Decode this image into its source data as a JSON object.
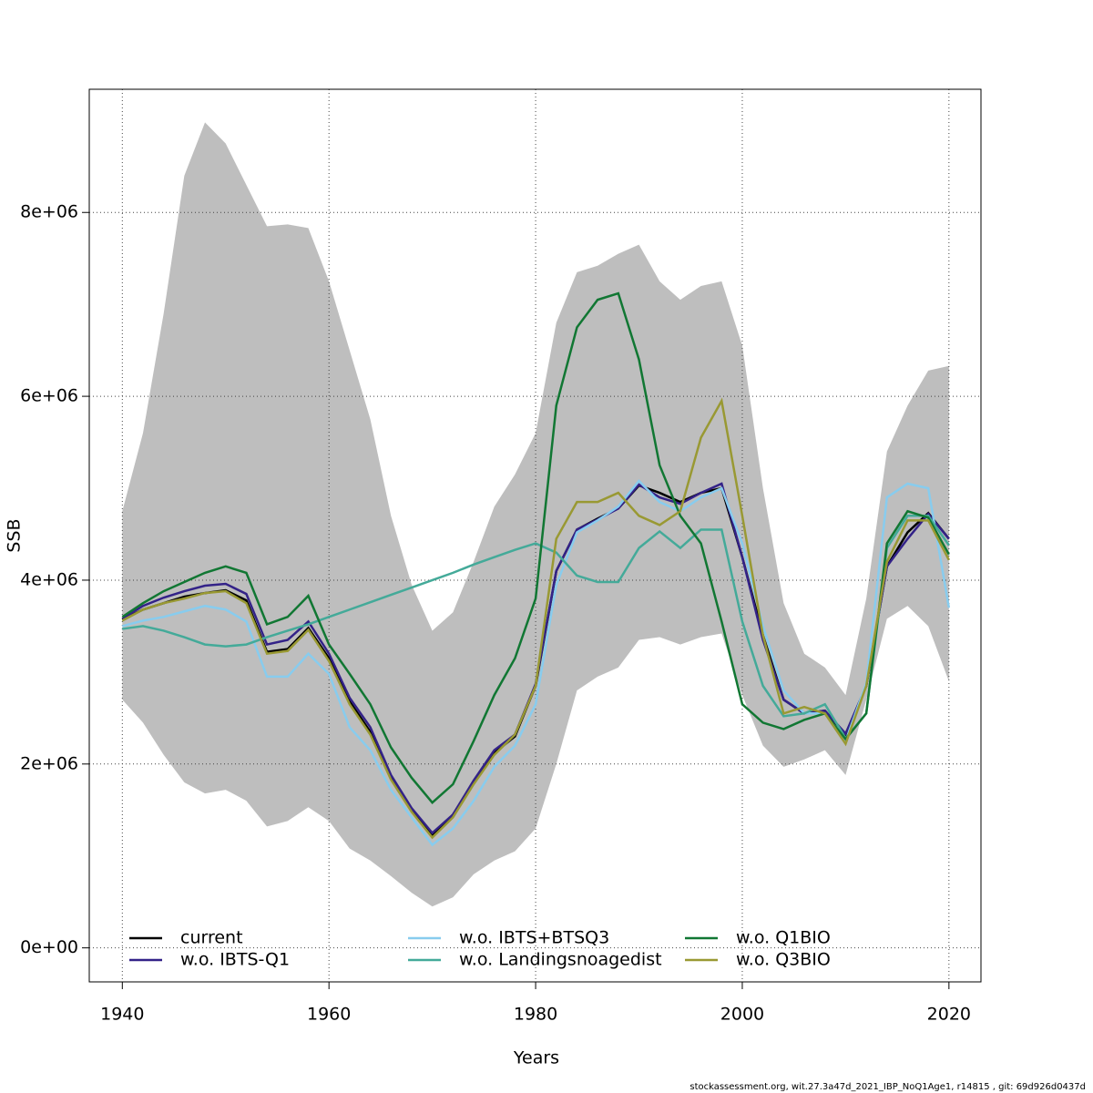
{
  "chart_data": {
    "type": "line",
    "xlabel": "Years",
    "ylabel": "SSB",
    "footer": "stockassessment.org, wit.27.3a47d_2021_IBP_NoQ1Age1, r14815 , git: 69d926d0437d",
    "x": [
      1940,
      1942,
      1944,
      1946,
      1948,
      1950,
      1952,
      1954,
      1956,
      1958,
      1960,
      1962,
      1964,
      1966,
      1968,
      1970,
      1972,
      1974,
      1976,
      1978,
      1980,
      1982,
      1984,
      1986,
      1988,
      1990,
      1992,
      1994,
      1996,
      1998,
      2000,
      2002,
      2004,
      2006,
      2008,
      2010,
      2012,
      2014,
      2016,
      2018,
      2020
    ],
    "xlim": [
      1936.8,
      2023.1
    ],
    "xticks": [
      1940,
      1960,
      1980,
      2000,
      2020
    ],
    "ylim": [
      -370000,
      9340000
    ],
    "yticks": [
      {
        "value": 0,
        "label": "0e+00"
      },
      {
        "value": 2000000,
        "label": "2e+06"
      },
      {
        "value": 4000000,
        "label": "4e+06"
      },
      {
        "value": 6000000,
        "label": "6e+06"
      },
      {
        "value": 8000000,
        "label": "8e+06"
      }
    ],
    "grid": true,
    "legend": "bottom",
    "band": {
      "color": "#bebebe",
      "upper": [
        4750000.0,
        5600000.0,
        6900000.0,
        8400000.0,
        8980000.0,
        8750000.0,
        8300000.0,
        7850000.0,
        7870000.0,
        7830000.0,
        7250000.0,
        6500000.0,
        5750000.0,
        4700000.0,
        3950000.0,
        3450000.0,
        3650000.0,
        4200000.0,
        4800000.0,
        5150000.0,
        5600000.0,
        6800000.0,
        7350000.0,
        7420000.0,
        7550000.0,
        7650000.0,
        7250000.0,
        7050000.0,
        7200000.0,
        7250000.0,
        6550000.0,
        5000000.0,
        3750000.0,
        3200000.0,
        3050000.0,
        2750000.0,
        3800000.0,
        5400000.0,
        5900000.0,
        6280000.0,
        6330000.0
      ],
      "lower": [
        2700000.0,
        2450000.0,
        2100000.0,
        1800000.0,
        1680000.0,
        1720000.0,
        1600000.0,
        1320000.0,
        1380000.0,
        1530000.0,
        1380000.0,
        1080000.0,
        950000.0,
        780000.0,
        600000.0,
        450000.0,
        550000.0,
        800000.0,
        950000.0,
        1050000.0,
        1300000.0,
        2000000.0,
        2800000.0,
        2950000.0,
        3050000.0,
        3350000.0,
        3380000.0,
        3300000.0,
        3380000.0,
        3420000.0,
        2750000.0,
        2200000.0,
        1970000.0,
        2050000.0,
        2150000.0,
        1880000.0,
        2700000.0,
        3580000.0,
        3720000.0,
        3500000.0,
        2900000.0
      ]
    },
    "series": [
      {
        "name": "current",
        "color": "#000000",
        "values": [
          3570000.0,
          3680000.0,
          3750000.0,
          3820000.0,
          3860000.0,
          3890000.0,
          3780000.0,
          3220000.0,
          3250000.0,
          3480000.0,
          3150000.0,
          2680000.0,
          2350000.0,
          1850000.0,
          1500000.0,
          1220000.0,
          1450000.0,
          1800000.0,
          2120000.0,
          2300000.0,
          2850000.0,
          4100000.0,
          4550000.0,
          4670000.0,
          4780000.0,
          5030000.0,
          4950000.0,
          4850000.0,
          4950000.0,
          5000000.0,
          4250000.0,
          3400000.0,
          2700000.0,
          2550000.0,
          2580000.0,
          2320000.0,
          2850000.0,
          4150000.0,
          4520000.0,
          4730000.0,
          4450000.0
        ]
      },
      {
        "name": "w.o. IBTS-Q1",
        "color": "#332288",
        "values": [
          3580000.0,
          3720000.0,
          3810000.0,
          3880000.0,
          3940000.0,
          3960000.0,
          3850000.0,
          3300000.0,
          3350000.0,
          3550000.0,
          3200000.0,
          2720000.0,
          2400000.0,
          1880000.0,
          1520000.0,
          1250000.0,
          1450000.0,
          1820000.0,
          2150000.0,
          2320000.0,
          2870000.0,
          4100000.0,
          4550000.0,
          4660000.0,
          4780000.0,
          5040000.0,
          4900000.0,
          4830000.0,
          4950000.0,
          5050000.0,
          4250000.0,
          3350000.0,
          2700000.0,
          2550000.0,
          2580000.0,
          2330000.0,
          2850000.0,
          4150000.0,
          4450000.0,
          4720000.0,
          4450000.0
        ]
      },
      {
        "name": "w.o. IBTS+BTSQ3",
        "color": "#88ccee",
        "values": [
          3500000.0,
          3560000.0,
          3600000.0,
          3660000.0,
          3720000.0,
          3680000.0,
          3550000.0,
          2950000.0,
          2950000.0,
          3200000.0,
          2980000.0,
          2400000.0,
          2150000.0,
          1720000.0,
          1420000.0,
          1120000.0,
          1300000.0,
          1600000.0,
          1970000.0,
          2200000.0,
          2650000.0,
          3950000.0,
          4520000.0,
          4650000.0,
          4800000.0,
          5080000.0,
          4850000.0,
          4750000.0,
          4900000.0,
          5000000.0,
          4400000.0,
          3500000.0,
          2800000.0,
          2550000.0,
          2550000.0,
          2250000.0,
          2880000.0,
          4900000.0,
          5050000.0,
          5000000.0,
          3700000.0
        ]
      },
      {
        "name": "w.o. Landingsnoagedist",
        "color": "#44aa99",
        "values": [
          3470000.0,
          3500000.0,
          3450000.0,
          3380000.0,
          3300000.0,
          3280000.0,
          3300000.0,
          3380000.0,
          3450000.0,
          3520000.0,
          3600000.0,
          3680000.0,
          3760000.0,
          3840000.0,
          3920000.0,
          4000000.0,
          4080000.0,
          4170000.0,
          4250000.0,
          4330000.0,
          4400000.0,
          4300000.0,
          4050000.0,
          3980000.0,
          3980000.0,
          4350000.0,
          4530000.0,
          4350000.0,
          4550000.0,
          4550000.0,
          3550000.0,
          2850000.0,
          2520000.0,
          2550000.0,
          2650000.0,
          2280000.0,
          2550000.0,
          4350000.0,
          4700000.0,
          4700000.0,
          4380000.0
        ]
      },
      {
        "name": "w.o. Q1BIO",
        "color": "#117733",
        "values": [
          3600000.0,
          3750000.0,
          3880000.0,
          3980000.0,
          4080000.0,
          4150000.0,
          4080000.0,
          3520000.0,
          3600000.0,
          3830000.0,
          3300000.0,
          2980000.0,
          2650000.0,
          2180000.0,
          1850000.0,
          1580000.0,
          1780000.0,
          2250000.0,
          2750000.0,
          3150000.0,
          3800000.0,
          5900000.0,
          6750000.0,
          7050000.0,
          7120000.0,
          6400000.0,
          5250000.0,
          4700000.0,
          4400000.0,
          3550000.0,
          2650000.0,
          2450000.0,
          2380000.0,
          2480000.0,
          2550000.0,
          2270000.0,
          2550000.0,
          4400000.0,
          4750000.0,
          4680000.0,
          4280000.0
        ]
      },
      {
        "name": "w.o. Q3BIO",
        "color": "#999933",
        "values": [
          3560000.0,
          3680000.0,
          3750000.0,
          3800000.0,
          3860000.0,
          3880000.0,
          3750000.0,
          3200000.0,
          3230000.0,
          3460000.0,
          3120000.0,
          2650000.0,
          2320000.0,
          1830000.0,
          1480000.0,
          1200000.0,
          1420000.0,
          1780000.0,
          2100000.0,
          2320000.0,
          2850000.0,
          4450000.0,
          4850000.0,
          4850000.0,
          4950000.0,
          4700000.0,
          4600000.0,
          4750000.0,
          5550000.0,
          5950000.0,
          4700000.0,
          3400000.0,
          2550000.0,
          2620000.0,
          2550000.0,
          2220000.0,
          2850000.0,
          4200000.0,
          4650000.0,
          4650000.0,
          4220000.0
        ]
      }
    ]
  }
}
